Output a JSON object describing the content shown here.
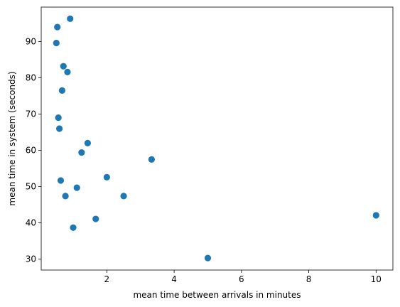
{
  "chart_data": {
    "type": "scatter",
    "title": "",
    "xlabel": "mean time between arrivals in minutes",
    "ylabel": "mean time in system (seconds)",
    "xlim": [
      0.05,
      10.5
    ],
    "ylim": [
      27.0,
      99.5
    ],
    "xticks": [
      2,
      4,
      6,
      8,
      10
    ],
    "yticks": [
      30,
      40,
      50,
      60,
      70,
      80,
      90
    ],
    "grid": false,
    "marker_color": "#1f77b4",
    "series": [
      {
        "points": [
          {
            "x": 0.5,
            "y": 89.6
          },
          {
            "x": 0.53,
            "y": 94.0
          },
          {
            "x": 0.56,
            "y": 69.0
          },
          {
            "x": 0.59,
            "y": 66.0
          },
          {
            "x": 0.63,
            "y": 51.7
          },
          {
            "x": 0.67,
            "y": 76.5
          },
          {
            "x": 0.71,
            "y": 83.2
          },
          {
            "x": 0.77,
            "y": 47.4
          },
          {
            "x": 0.83,
            "y": 81.6
          },
          {
            "x": 0.91,
            "y": 96.3
          },
          {
            "x": 1.0,
            "y": 38.7
          },
          {
            "x": 1.11,
            "y": 49.7
          },
          {
            "x": 1.25,
            "y": 59.4
          },
          {
            "x": 1.43,
            "y": 62.0
          },
          {
            "x": 1.67,
            "y": 41.1
          },
          {
            "x": 2.0,
            "y": 52.6
          },
          {
            "x": 2.5,
            "y": 47.4
          },
          {
            "x": 3.33,
            "y": 57.5
          },
          {
            "x": 5.0,
            "y": 30.3
          },
          {
            "x": 10.0,
            "y": 42.1
          }
        ]
      }
    ]
  }
}
